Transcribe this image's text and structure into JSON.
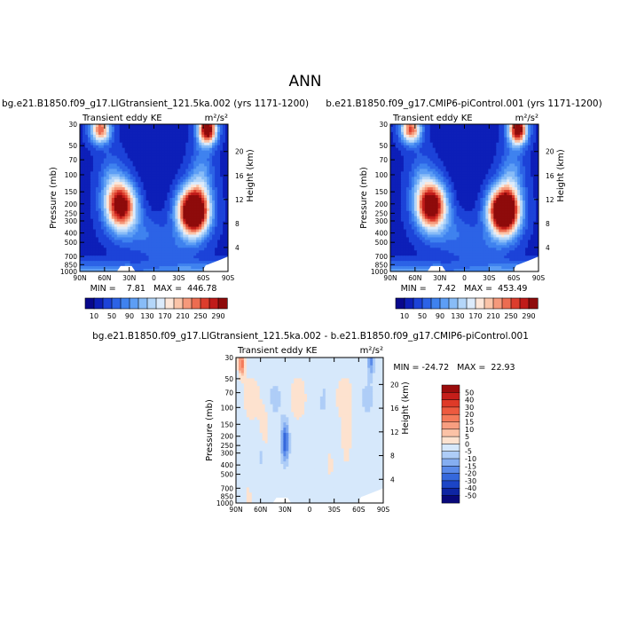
{
  "title": "ANN",
  "panels": [
    {
      "header": "bg.e21.B1850.f09_g17.LIGtransient_121.5ka.002 (yrs 1171-1200)",
      "left_label": "Transient eddy KE",
      "units": "m²/s²",
      "minmax": "MIN =    7.81   MAX =  446.78"
    },
    {
      "header": "b.e21.B1850.f09_g17.CMIP6-piControl.001 (yrs 1171-1200)",
      "left_label": "Transient eddy KE",
      "units": "m²/s²",
      "minmax": "MIN =    7.42   MAX =  453.49"
    },
    {
      "header": "bg.e21.B1850.f09_g17.LIGtransient_121.5ka.002 - b.e21.B1850.f09_g17.CMIP6-piControl.001",
      "left_label": "Transient eddy KE",
      "units": "m²/s²",
      "minmax": "MIN = -24.72   MAX =  22.93"
    }
  ],
  "axes": {
    "ylabel": "Pressure (mb)",
    "y2label": "Height (km)",
    "xticks": [
      "90N",
      "60N",
      "30N",
      "0",
      "30S",
      "60S",
      "90S"
    ],
    "pressure_ticks": [
      "30",
      "50",
      "70",
      "100",
      "150",
      "200",
      "250",
      "300",
      "400",
      "500",
      "700",
      "850",
      "1000"
    ],
    "height_ticks": [
      "20",
      "16",
      "12",
      "8",
      "4"
    ]
  },
  "colorbar_main": {
    "labels": [
      "10",
      "50",
      "90",
      "130",
      "170",
      "210",
      "250",
      "290"
    ],
    "colors": [
      "#08088c",
      "#0d1fb8",
      "#1c43d8",
      "#2c63e6",
      "#3f82ef",
      "#5d9ef5",
      "#88bcf7",
      "#b4d6f9",
      "#dcebfb",
      "#fde6d8",
      "#fac4a8",
      "#f5997b",
      "#ec6c51",
      "#dc3d2d",
      "#c01b19",
      "#8e0b0b"
    ]
  },
  "colorbar_diff": {
    "labels": [
      "50",
      "40",
      "30",
      "20",
      "15",
      "10",
      "5",
      "0",
      "-5",
      "-10",
      "-15",
      "-20",
      "-30",
      "-40",
      "-50"
    ],
    "colors": [
      "#9b0c0c",
      "#c51e1a",
      "#df3a28",
      "#ed5a3f",
      "#f47a5a",
      "#f89e80",
      "#fbc2a6",
      "#fde2cf",
      "#d6e8fb",
      "#aecdf7",
      "#85aef1",
      "#5a8ae9",
      "#3568dc",
      "#1c45c6",
      "#0e25a3",
      "#08087a"
    ]
  },
  "chart_data": [
    {
      "type": "heatmap",
      "title": "bg.e21.B1850.f09_g17.LIGtransient_121.5ka.002 (yrs 1171-1200)",
      "subtitle": "Transient eddy KE",
      "units": "m2/s2",
      "xlabel": "",
      "ylabel": "Pressure (mb)",
      "y2label": "Height (km)",
      "xlim": [
        90,
        -90
      ],
      "ylim_mb": [
        1000,
        30
      ],
      "log_y": true,
      "min": 7.81,
      "max": 446.78,
      "levels": [
        10,
        30,
        50,
        70,
        90,
        110,
        130,
        150,
        170,
        190,
        210,
        230,
        250,
        270,
        290
      ],
      "features": [
        {
          "lat": 40,
          "p": 210,
          "value": 330
        },
        {
          "lat": -48,
          "p": 240,
          "value": 440
        },
        {
          "lat": 65,
          "p": 34,
          "value": 250
        },
        {
          "lat": -65,
          "p": 34,
          "value": 340
        }
      ]
    },
    {
      "type": "heatmap",
      "title": "b.e21.B1850.f09_g17.CMIP6-piControl.001 (yrs 1171-1200)",
      "subtitle": "Transient eddy KE",
      "units": "m2/s2",
      "xlabel": "",
      "ylabel": "Pressure (mb)",
      "y2label": "Height (km)",
      "xlim": [
        90,
        -90
      ],
      "ylim_mb": [
        1000,
        30
      ],
      "log_y": true,
      "min": 7.42,
      "max": 453.49,
      "levels": [
        10,
        30,
        50,
        70,
        90,
        110,
        130,
        150,
        170,
        190,
        210,
        230,
        250,
        270,
        290
      ],
      "features": [
        {
          "lat": 40,
          "p": 210,
          "value": 345
        },
        {
          "lat": -48,
          "p": 240,
          "value": 450
        },
        {
          "lat": 65,
          "p": 34,
          "value": 255
        },
        {
          "lat": -65,
          "p": 34,
          "value": 330
        }
      ]
    },
    {
      "type": "heatmap",
      "title": "bg.e21.B1850.f09_g17.LIGtransient_121.5ka.002 - b.e21.B1850.f09_g17.CMIP6-piControl.001",
      "subtitle": "Transient eddy KE",
      "units": "m2/s2",
      "xlabel": "",
      "ylabel": "Pressure (mb)",
      "y2label": "Height (km)",
      "xlim": [
        90,
        -90
      ],
      "ylim_mb": [
        1000,
        30
      ],
      "log_y": true,
      "min": -24.72,
      "max": 22.93,
      "levels": [
        -50,
        -40,
        -30,
        -20,
        -15,
        -10,
        -5,
        0,
        5,
        10,
        15,
        20,
        30,
        40,
        50
      ],
      "features": [
        {
          "lat": 30,
          "p": 230,
          "value": -24
        },
        {
          "lat": 83,
          "p": 35,
          "value": 20
        },
        {
          "lat": -75,
          "p": 33,
          "value": -14
        },
        {
          "lat": -45,
          "p": 200,
          "value": 6
        },
        {
          "lat": 55,
          "p": 150,
          "value": 5
        }
      ]
    }
  ]
}
